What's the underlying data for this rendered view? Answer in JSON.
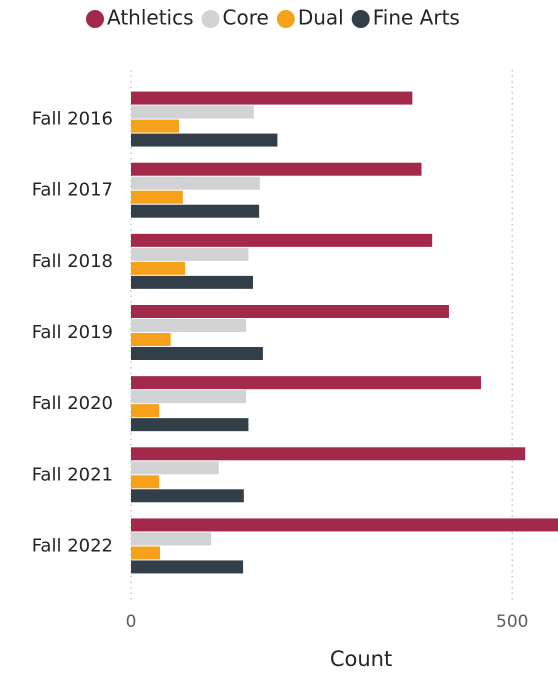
{
  "chart_data": {
    "type": "hbar",
    "x_label": "Count",
    "categories": [
      "Fall 2016",
      "Fall 2017",
      "Fall 2018",
      "Fall 2019",
      "Fall 2020",
      "Fall 2021",
      "Fall 2022"
    ],
    "series": [
      {
        "name": "Athletics",
        "color": "#a3294a",
        "values": [
          369,
          381,
          395,
          417,
          459,
          517,
          560
        ]
      },
      {
        "name": "Core",
        "color": "#d0d2d3",
        "values": [
          161,
          169,
          154,
          151,
          151,
          115,
          105
        ]
      },
      {
        "name": "Dual",
        "color": "#f5a11c",
        "values": [
          63,
          68,
          71,
          52,
          37,
          37,
          38
        ]
      },
      {
        "name": "Fine Arts",
        "color": "#333f48",
        "values": [
          192,
          168,
          160,
          173,
          154,
          148,
          147
        ]
      }
    ],
    "xlim": [
      0,
      560
    ],
    "xticks": [
      0,
      500
    ],
    "grid": true,
    "legend": "top"
  }
}
